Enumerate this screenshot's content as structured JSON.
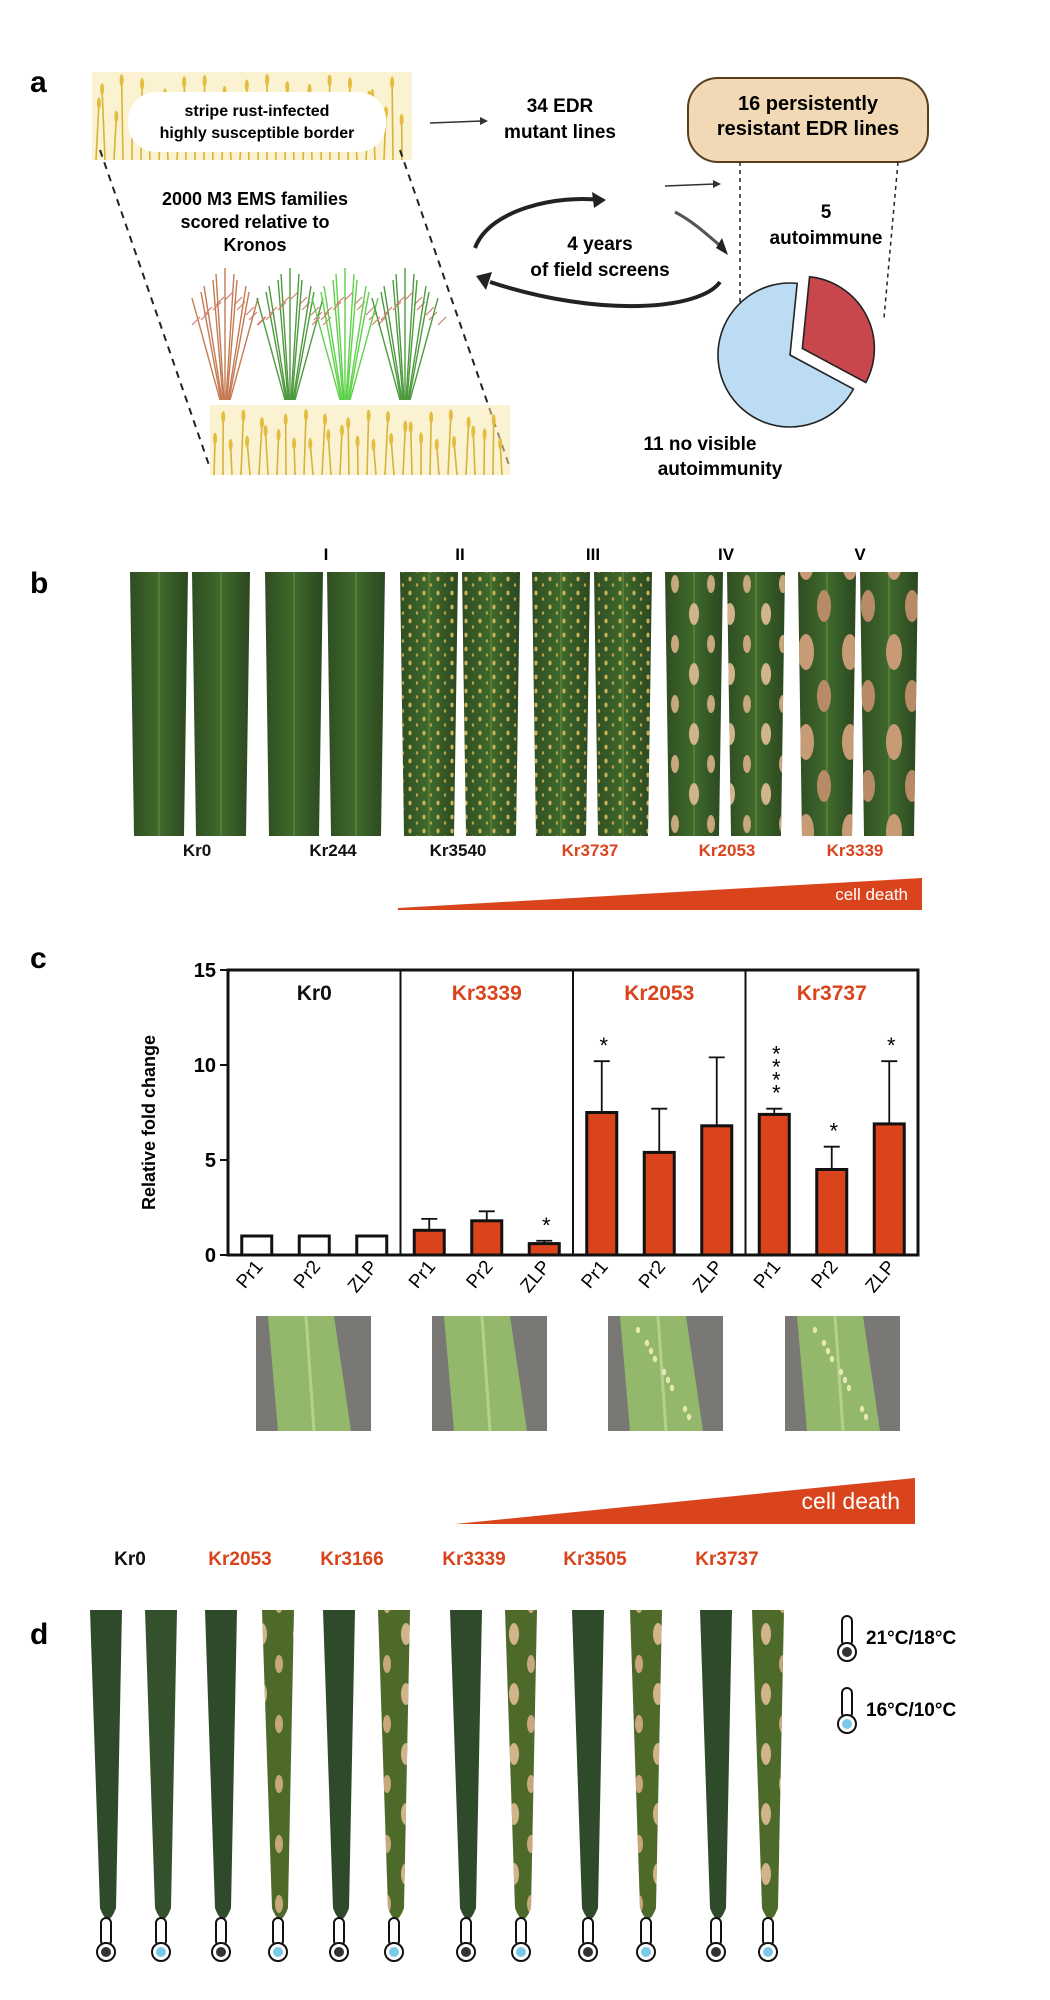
{
  "panel_a": {
    "letter": "a",
    "border_label_line1": "stripe rust-infected",
    "border_label_line2": "highly susceptible border",
    "families_line1": "2000 M3 EMS families",
    "families_line2": "scored relative to",
    "families_line3": "Kronos",
    "edr_line1": "34 EDR",
    "edr_line2": "mutant lines",
    "cycle_line1": "4 years",
    "cycle_line2": "of field screens",
    "resistant_line1": "16 persistently",
    "resistant_line2": "resistant EDR lines",
    "autoimmune_count": "5",
    "autoimmune_label": "autoimmune",
    "no_visible_line1": "11 no visible",
    "no_visible_line2": "autoimmunity",
    "pie": [
      {
        "label": "autoimmune",
        "value": 5,
        "color": "#c8474c"
      },
      {
        "label": "no visible autoimmunity",
        "value": 11,
        "color": "#bcdcf3"
      }
    ]
  },
  "panel_b": {
    "letter": "b",
    "classes": [
      "I",
      "II",
      "III",
      "IV",
      "V"
    ],
    "lines": [
      {
        "name": "Kr0",
        "color": "#111111"
      },
      {
        "name": "Kr244",
        "color": "#111111"
      },
      {
        "name": "Kr3540",
        "color": "#111111"
      },
      {
        "name": "Kr3737",
        "color": "#d9441c"
      },
      {
        "name": "Kr2053",
        "color": "#d9441c"
      },
      {
        "name": "Kr3339",
        "color": "#d9441c"
      }
    ],
    "wedge_label": "cell death"
  },
  "panel_c": {
    "letter": "c",
    "wedge_label": "cell death",
    "chart_data": {
      "type": "bar",
      "ylabel": "Relative fold change",
      "ylim": [
        0,
        15
      ],
      "yticks": [
        0,
        5,
        10,
        15
      ],
      "groups": [
        {
          "name": "Kr0",
          "color": "#111111",
          "categories": [
            "Pr1",
            "Pr2",
            "ZLP"
          ],
          "values": [
            1.0,
            1.0,
            1.0
          ],
          "errors": [
            0,
            0,
            0
          ],
          "sig": [
            "",
            "",
            ""
          ],
          "fill": "#ffffff"
        },
        {
          "name": "Kr3339",
          "color": "#d9441c",
          "categories": [
            "Pr1",
            "Pr2",
            "ZLP"
          ],
          "values": [
            1.3,
            1.8,
            0.6
          ],
          "errors": [
            0.6,
            0.5,
            0.15
          ],
          "sig": [
            "",
            "",
            "*"
          ],
          "fill": "#d9441c"
        },
        {
          "name": "Kr2053",
          "color": "#d9441c",
          "categories": [
            "Pr1",
            "Pr2",
            "ZLP"
          ],
          "values": [
            7.5,
            5.4,
            6.8
          ],
          "errors": [
            2.7,
            2.3,
            3.6
          ],
          "sig": [
            "*",
            "",
            ""
          ],
          "fill": "#d9441c"
        },
        {
          "name": "Kr3737",
          "color": "#d9441c",
          "categories": [
            "Pr1",
            "Pr2",
            "ZLP"
          ],
          "values": [
            7.4,
            4.5,
            6.9
          ],
          "errors": [
            0.3,
            1.2,
            3.3
          ],
          "sig": [
            "****",
            "*",
            "*"
          ],
          "fill": "#d9441c"
        }
      ]
    }
  },
  "panel_d": {
    "letter": "d",
    "lines": [
      {
        "name": "Kr0",
        "color": "#111111"
      },
      {
        "name": "Kr2053",
        "color": "#d9441c"
      },
      {
        "name": "Kr3166",
        "color": "#d9441c"
      },
      {
        "name": "Kr3339",
        "color": "#d9441c"
      },
      {
        "name": "Kr3505",
        "color": "#d9441c"
      },
      {
        "name": "Kr3737",
        "color": "#d9441c"
      }
    ],
    "legend_warm": "21°C/18°C",
    "legend_cool": "16°C/10°C",
    "warm_color": "#333333",
    "cool_color": "#7cc8e8"
  }
}
